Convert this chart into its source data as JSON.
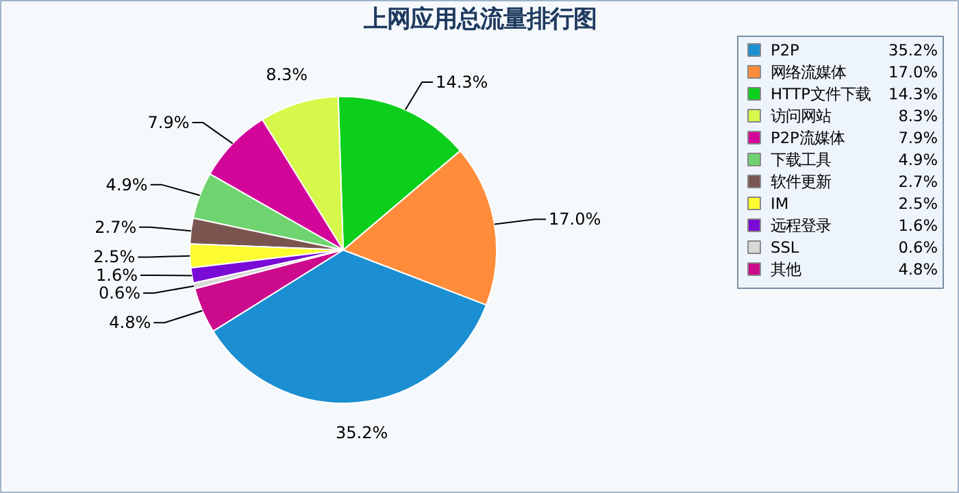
{
  "chart_data": {
    "type": "pie",
    "title": "上网应用总流量排行图",
    "categories": [
      "P2P",
      "网络流媒体",
      "HTTP文件下载",
      "访问网站",
      "P2P流媒体",
      "下载工具",
      "软件更新",
      "IM",
      "远程登录",
      "SSL",
      "其他"
    ],
    "values": [
      35.2,
      17.0,
      14.3,
      8.3,
      7.9,
      4.9,
      2.7,
      2.5,
      1.6,
      0.6,
      4.8
    ],
    "value_labels": [
      "35.2%",
      "17.0%",
      "14.3%",
      "8.3%",
      "7.9%",
      "4.9%",
      "2.7%",
      "2.5%",
      "1.6%",
      "0.6%",
      "4.8%"
    ],
    "colors": [
      "#1b8fd2",
      "#ff8c3a",
      "#0ccf1c",
      "#d6f84a",
      "#d3069a",
      "#6fd46f",
      "#7a5550",
      "#fcfc30",
      "#7a0ad6",
      "#d8d8d8",
      "#cc0a8c"
    ],
    "legend": "right"
  }
}
